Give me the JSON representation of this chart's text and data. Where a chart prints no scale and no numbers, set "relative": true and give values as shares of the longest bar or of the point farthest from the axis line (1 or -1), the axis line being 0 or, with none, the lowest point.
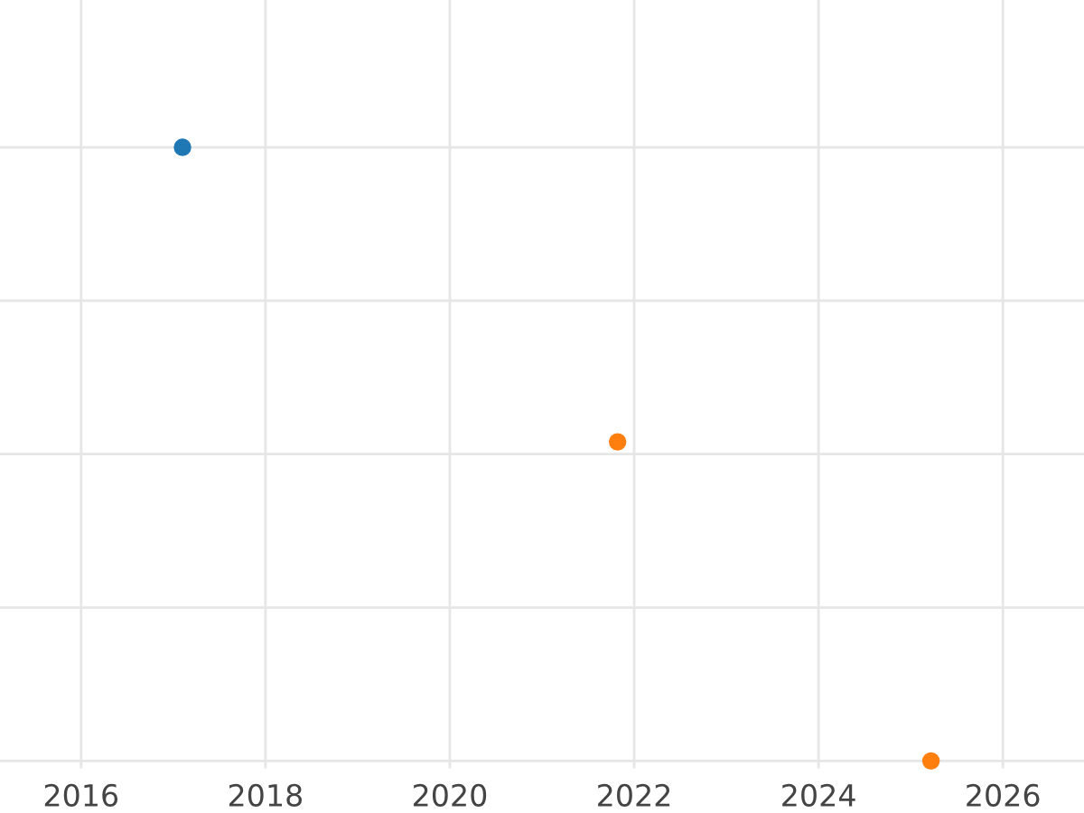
{
  "chart_data": {
    "type": "scatter",
    "relative": true,
    "xlim": [
      2015.12,
      2026.88
    ],
    "xticks": [
      2016,
      2018,
      2020,
      2022,
      2024,
      2026
    ],
    "series": [
      {
        "color": "#1f77b4",
        "x": [
          2017.1
        ],
        "values": [
          1
        ]
      },
      {
        "color": "#ff7f0e",
        "x": [
          2021.82,
          2025.22
        ],
        "values": [
          0.52,
          0
        ]
      }
    ],
    "grid": true,
    "marker": "circle"
  }
}
